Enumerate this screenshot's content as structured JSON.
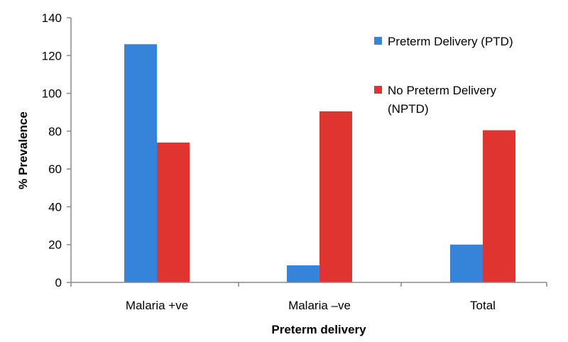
{
  "chart_data": {
    "type": "bar",
    "title": "",
    "xlabel": "Preterm delivery",
    "ylabel": "% Prevalence",
    "categories": [
      "Malaria +ve",
      "Malaria –ve",
      "Total"
    ],
    "ylim": [
      0,
      140
    ],
    "yticks": [
      0,
      20,
      40,
      60,
      80,
      100,
      120,
      140
    ],
    "grid": false,
    "legend_position": "right",
    "series": [
      {
        "name": "Preterm Delivery (PTD)",
        "values": [
          126,
          9,
          20
        ],
        "color": "#3584D9"
      },
      {
        "name": "No Preterm Delivery (NPTD)",
        "values": [
          74,
          90.5,
          80.5
        ],
        "color": "#E03430"
      }
    ]
  }
}
